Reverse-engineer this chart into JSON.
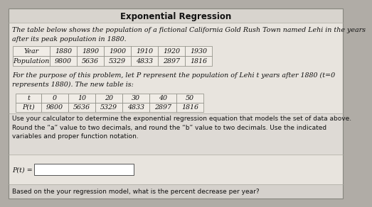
{
  "title": "Exponential Regression",
  "intro_text": "The table below shows the population of a fictional California Gold Rush Town named Lehi in the years\nafter its peak population in 1880.",
  "table1_headers": [
    "Year",
    "1880",
    "1890",
    "1900",
    "1910",
    "1920",
    "1930"
  ],
  "table1_row": [
    "Population",
    "9800",
    "5636",
    "5329",
    "4833",
    "2897",
    "1816"
  ],
  "middle_text": "For the purpose of this problem, let P represent the population of Lehi t years after 1880 (t=0\nrepresents 1880). The new table is:",
  "table2_headers": [
    "t",
    "0",
    "10",
    "20",
    "30",
    "40",
    "50"
  ],
  "table2_row": [
    "P(t)",
    "9800",
    "5636",
    "5329",
    "4833",
    "2897",
    "1816"
  ],
  "instruction_text": "Use your calculator to determine the exponential regression equation that models the set of data above.\nRound the “a” value to two decimals, and round the “b” value to two decimals. Use the indicated\nvariables and proper function notation.",
  "answer_label": "P(t) =",
  "final_question": "Based on the your regression model, what is the percent decrease per year?",
  "bg_outer": "#b0aca6",
  "bg_main": "#e8e4de",
  "bg_title_bar": "#d8d4ce",
  "bg_instruction": "#dedad5",
  "bg_bottom": "#d5d1cc",
  "table_cell_bg": "#f0ece6",
  "border_color": "#888880",
  "title_fontsize": 8.5,
  "body_fontsize": 6.8,
  "table_fontsize": 6.8
}
